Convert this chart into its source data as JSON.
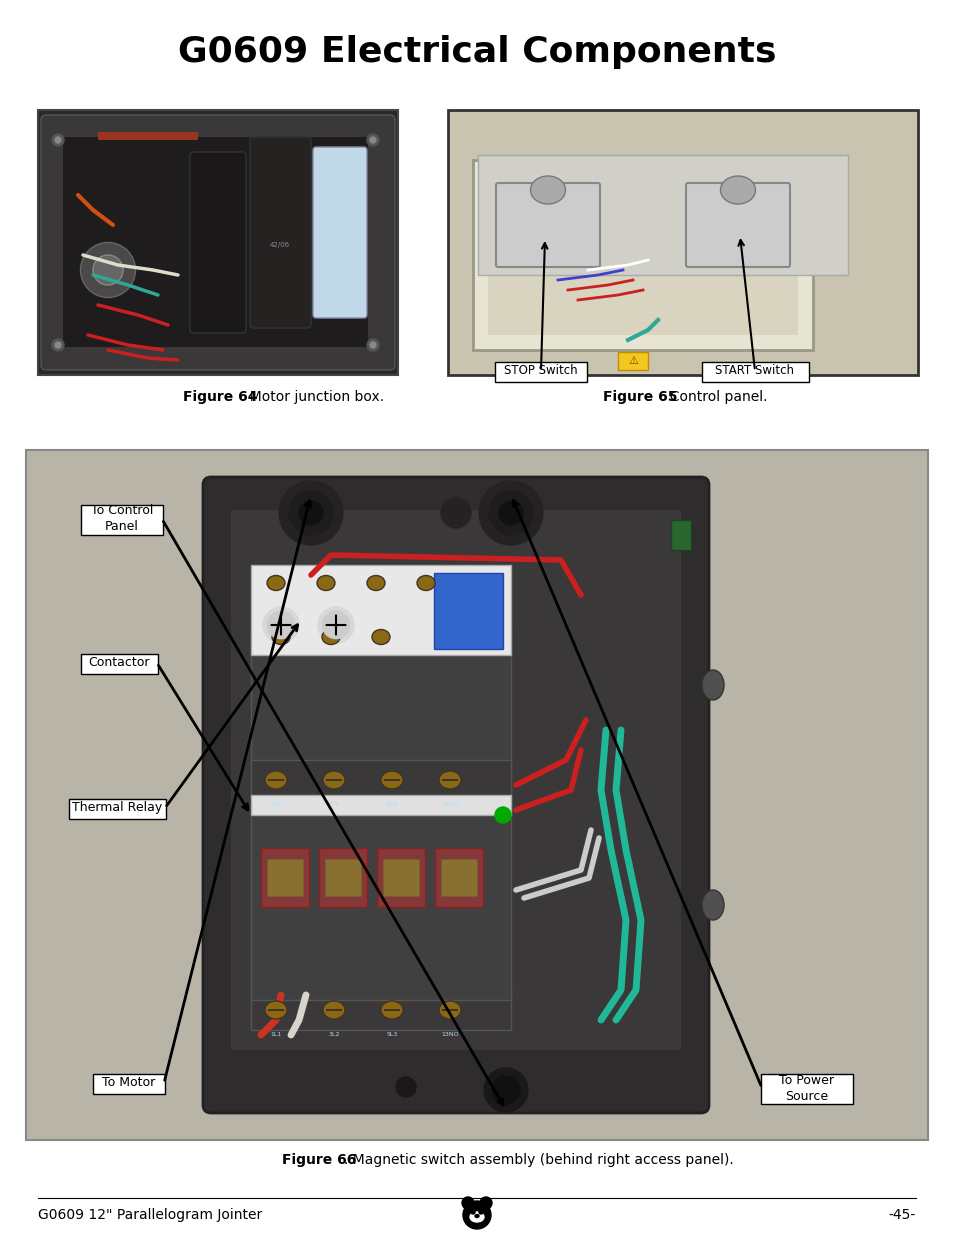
{
  "title": "G0609 Electrical Components",
  "title_fontsize": 26,
  "title_fontweight": "bold",
  "bg_color": "#ffffff",
  "footer_left": "G0609 12\" Parallelogram Jointer",
  "footer_right": "-45-",
  "footer_fontsize": 10,
  "fig64_caption_bold": "Figure 64",
  "fig64_caption_rest": ". Motor junction box.",
  "fig65_caption_bold": "Figure 65",
  "fig65_caption_rest": ". Control panel.",
  "fig66_caption_bold": "Figure 66",
  "fig66_caption_rest": ". Magnetic switch assembly (behind right access panel).",
  "stop_switch_label": "STOP Switch",
  "start_switch_label": "START Switch",
  "to_control_panel_label": "To Control\nPanel",
  "contactor_label": "Contactor",
  "thermal_relay_label": "Thermal Relay",
  "to_motor_label": "To Motor",
  "to_power_source_label": "To Power\nSource",
  "callout_fontsize": 9
}
